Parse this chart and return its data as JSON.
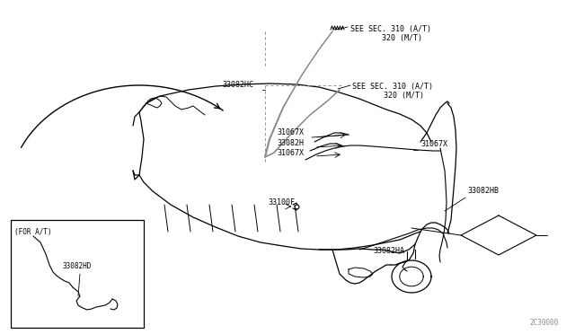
{
  "bg_color": "#ffffff",
  "line_color": "#000000",
  "dim_color": "#888888",
  "fig_width": 6.4,
  "fig_height": 3.72,
  "dpi": 100,
  "watermark": "2C30000",
  "labels": {
    "see_sec1": "SEE SEC. 310 (A/T)\n       320 (M/T)",
    "see_sec2": "SEE SEC. 310 (A/T)\n       320 (M/T)",
    "label_33082HC": "33082HC",
    "label_31067X_1": "31067X",
    "label_33082H": "33082H",
    "label_31067X_2": "31067X",
    "label_31067X_3": "31067X",
    "label_33100F": "33100F",
    "label_33082HB": "33082HB",
    "label_33082HA": "33082HA",
    "label_for_at": "(FOR A/T)",
    "label_33082HD": "33082HD"
  }
}
